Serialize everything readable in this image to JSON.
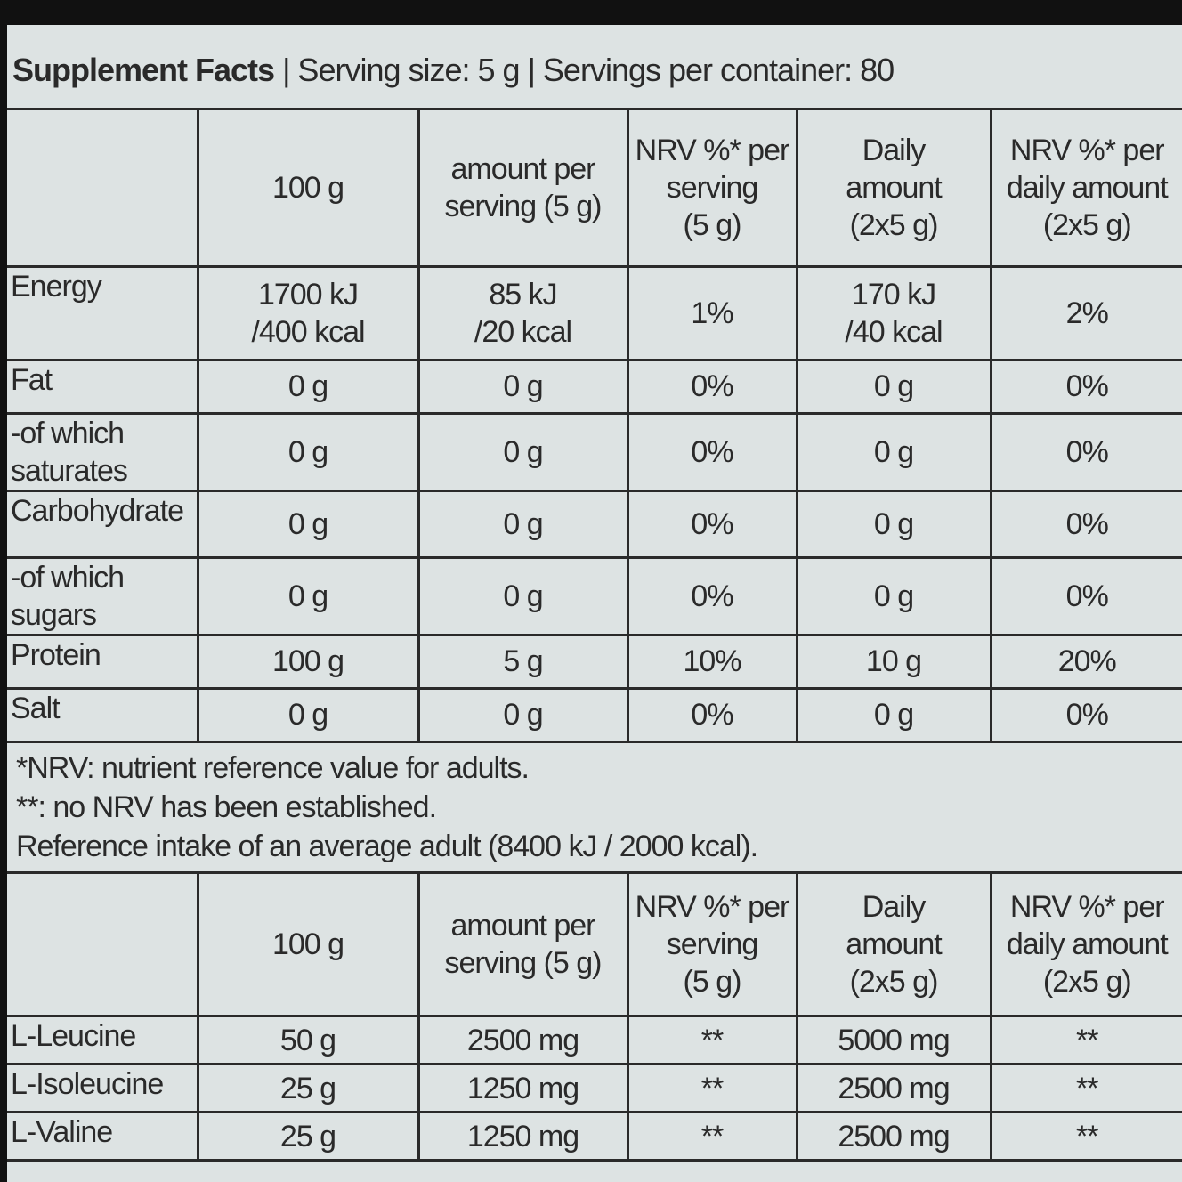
{
  "header": {
    "title": "Supplement Facts",
    "details": "| Serving size: 5 g | Servings per container: 80"
  },
  "table1": {
    "columns": [
      "100 g",
      "amount per\nserving (5 g)",
      "NRV %* per\nserving\n(5 g)",
      "Daily\namount\n(2x5 g)",
      "NRV %* per\ndaily amount\n(2x5 g)"
    ],
    "rows": [
      [
        "Energy",
        "1700 kJ\n/400 kcal",
        "85 kJ\n/20 kcal",
        "1%",
        "170 kJ\n/40 kcal",
        "2%"
      ],
      [
        "Fat",
        "0 g",
        "0 g",
        "0%",
        "0 g",
        "0%"
      ],
      [
        "-of which\nsaturates",
        "0 g",
        "0 g",
        "0%",
        "0 g",
        "0%"
      ],
      [
        "Carbohydrate",
        "0 g",
        "0 g",
        "0%",
        "0 g",
        "0%"
      ],
      [
        "-of which\nsugars",
        "0 g",
        "0 g",
        "0%",
        "0 g",
        "0%"
      ],
      [
        "Protein",
        "100 g",
        "5 g",
        "10%",
        "10 g",
        "20%"
      ],
      [
        "Salt",
        "0 g",
        "0 g",
        "0%",
        "0 g",
        "0%"
      ]
    ]
  },
  "footnotes": [
    "*NRV: nutrient reference value for adults.",
    "**: no NRV has been established.",
    "Reference intake of an average adult (8400 kJ / 2000 kcal)."
  ],
  "table2": {
    "columns": [
      "100 g",
      "amount per\nserving (5 g)",
      "NRV %* per\nserving\n(5 g)",
      "Daily\namount\n(2x5 g)",
      "NRV %* per\ndaily amount\n(2x5 g)"
    ],
    "rows": [
      [
        "L-Leucine",
        "50 g",
        "2500 mg",
        "**",
        "5000 mg",
        "**"
      ],
      [
        "L-Isoleucine",
        "25 g",
        "1250 mg",
        "**",
        "2500 mg",
        "**"
      ],
      [
        "L-Valine",
        "25 g",
        "1250 mg",
        "**",
        "2500 mg",
        "**"
      ]
    ]
  }
}
